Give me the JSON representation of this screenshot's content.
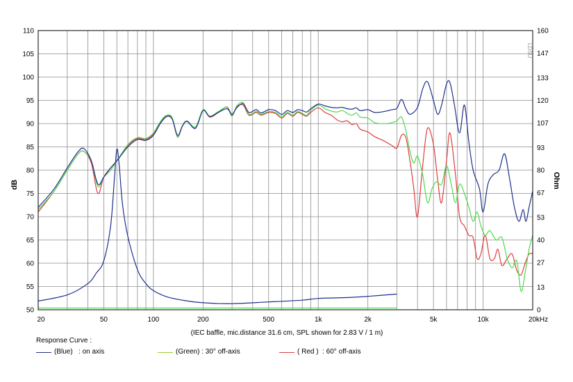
{
  "chart_data": {
    "type": "line",
    "subtitle": "(IEC baffle, mic.distance 31.6 cm, SPL shown for 2.83 V / 1 m)",
    "xlabel": "",
    "ylabel_left": "dB",
    "ylabel_right": "Ohm",
    "x_scale": "log",
    "xlim": [
      20,
      20000
    ],
    "ylim_left": [
      50,
      110
    ],
    "ylim_right": [
      0,
      160
    ],
    "x_ticks": [
      {
        "v": 20,
        "label": "20"
      },
      {
        "v": 50,
        "label": "50"
      },
      {
        "v": 100,
        "label": "100"
      },
      {
        "v": 200,
        "label": "200"
      },
      {
        "v": 500,
        "label": "500"
      },
      {
        "v": 1000,
        "label": "1k"
      },
      {
        "v": 2000,
        "label": "2k"
      },
      {
        "v": 5000,
        "label": "5k"
      },
      {
        "v": 10000,
        "label": "10k"
      },
      {
        "v": 20000,
        "label": "20kHz"
      }
    ],
    "y_ticks_left": [
      "110",
      "105",
      "100",
      "95",
      "90",
      "85",
      "80",
      "75",
      "70",
      "65",
      "60",
      "55",
      "50"
    ],
    "y_ticks_right": [
      {
        "v": 160,
        "label": "160"
      },
      {
        "v": 147,
        "label": "147"
      },
      {
        "v": 133,
        "label": "133"
      },
      {
        "v": 120,
        "label": "120"
      },
      {
        "v": 107,
        "label": "107"
      },
      {
        "v": 93,
        "label": "93"
      },
      {
        "v": 80,
        "label": "80"
      },
      {
        "v": 67,
        "label": "67"
      },
      {
        "v": 53,
        "label": "53"
      },
      {
        "v": 40,
        "label": "40"
      },
      {
        "v": 27,
        "label": "27"
      },
      {
        "v": 13,
        "label": "13"
      },
      {
        "v": 0,
        "label": "0"
      }
    ],
    "watermark": "LDSU",
    "grid": true,
    "legend_title": "Response Curve :",
    "legend_position": "bottom",
    "series": [
      {
        "name": "(Blue)   : on axis",
        "color": "#1c2f8c",
        "axis": "left",
        "points": [
          [
            20,
            72
          ],
          [
            25,
            76
          ],
          [
            30,
            80.5
          ],
          [
            35,
            84
          ],
          [
            38,
            84.6
          ],
          [
            42,
            82
          ],
          [
            46,
            77
          ],
          [
            50,
            78.5
          ],
          [
            55,
            80.5
          ],
          [
            60,
            82
          ],
          [
            70,
            85
          ],
          [
            80,
            86.6
          ],
          [
            90,
            86.4
          ],
          [
            100,
            87.5
          ],
          [
            110,
            90
          ],
          [
            120,
            91.5
          ],
          [
            130,
            91
          ],
          [
            140,
            87.5
          ],
          [
            150,
            89.5
          ],
          [
            160,
            90.5
          ],
          [
            180,
            89
          ],
          [
            200,
            92.8
          ],
          [
            220,
            91.5
          ],
          [
            250,
            92.5
          ],
          [
            280,
            93.2
          ],
          [
            300,
            92
          ],
          [
            320,
            93.4
          ],
          [
            350,
            94.3
          ],
          [
            380,
            92.4
          ],
          [
            420,
            93
          ],
          [
            450,
            92.3
          ],
          [
            500,
            93
          ],
          [
            550,
            92.8
          ],
          [
            600,
            92
          ],
          [
            650,
            92.8
          ],
          [
            700,
            92.4
          ],
          [
            750,
            93
          ],
          [
            800,
            92.8
          ],
          [
            850,
            92.5
          ],
          [
            900,
            93.2
          ],
          [
            1000,
            94.2
          ],
          [
            1100,
            93.8
          ],
          [
            1200,
            93.5
          ],
          [
            1300,
            93.4
          ],
          [
            1400,
            93.5
          ],
          [
            1500,
            93.2
          ],
          [
            1600,
            93.1
          ],
          [
            1700,
            93.4
          ],
          [
            1800,
            92.8
          ],
          [
            2000,
            93
          ],
          [
            2200,
            92.4
          ],
          [
            2500,
            92.6
          ],
          [
            2800,
            93
          ],
          [
            3000,
            93.3
          ],
          [
            3200,
            95.2
          ],
          [
            3400,
            93.2
          ],
          [
            3600,
            92
          ],
          [
            4000,
            93.5
          ],
          [
            4300,
            97.5
          ],
          [
            4600,
            99
          ],
          [
            5000,
            95
          ],
          [
            5300,
            92
          ],
          [
            5600,
            94
          ],
          [
            6000,
            98.5
          ],
          [
            6300,
            98.8
          ],
          [
            6700,
            94
          ],
          [
            7200,
            88
          ],
          [
            7700,
            94
          ],
          [
            8200,
            86
          ],
          [
            8700,
            80
          ],
          [
            9500,
            76
          ],
          [
            10000,
            71
          ],
          [
            10700,
            77
          ],
          [
            11500,
            79
          ],
          [
            12500,
            80
          ],
          [
            13500,
            83.5
          ],
          [
            14500,
            78
          ],
          [
            15500,
            72
          ],
          [
            16500,
            69
          ],
          [
            17500,
            71.5
          ],
          [
            18200,
            69
          ],
          [
            19000,
            72
          ],
          [
            20000,
            75.5
          ]
        ]
      },
      {
        "name": "(Green) : 30° off-axis",
        "color": "#4dd94d",
        "axis": "left",
        "points": [
          [
            20,
            71.5
          ],
          [
            25,
            75.5
          ],
          [
            30,
            80
          ],
          [
            35,
            83.5
          ],
          [
            38,
            84
          ],
          [
            42,
            82
          ],
          [
            46,
            76.5
          ],
          [
            50,
            78.5
          ],
          [
            55,
            80
          ],
          [
            60,
            82
          ],
          [
            70,
            85.5
          ],
          [
            80,
            87
          ],
          [
            90,
            86.8
          ],
          [
            100,
            88
          ],
          [
            110,
            90.4
          ],
          [
            120,
            91.8
          ],
          [
            130,
            91.3
          ],
          [
            140,
            87.2
          ],
          [
            150,
            89.6
          ],
          [
            160,
            90.6
          ],
          [
            180,
            89.3
          ],
          [
            200,
            93
          ],
          [
            220,
            91.6
          ],
          [
            250,
            92.7
          ],
          [
            280,
            93.5
          ],
          [
            300,
            91.6
          ],
          [
            320,
            93.8
          ],
          [
            350,
            94.5
          ],
          [
            380,
            92
          ],
          [
            420,
            92.6
          ],
          [
            450,
            92
          ],
          [
            500,
            92.6
          ],
          [
            550,
            92.4
          ],
          [
            600,
            91.5
          ],
          [
            650,
            92.4
          ],
          [
            700,
            91.8
          ],
          [
            750,
            92.6
          ],
          [
            800,
            92.2
          ],
          [
            850,
            91.8
          ],
          [
            900,
            92.8
          ],
          [
            1000,
            94
          ],
          [
            1100,
            93.2
          ],
          [
            1200,
            92.7
          ],
          [
            1300,
            92.5
          ],
          [
            1400,
            92.8
          ],
          [
            1500,
            92.2
          ],
          [
            1600,
            91.8
          ],
          [
            1700,
            92.3
          ],
          [
            1800,
            91.4
          ],
          [
            2000,
            91.2
          ],
          [
            2200,
            90.2
          ],
          [
            2500,
            90
          ],
          [
            2800,
            90.2
          ],
          [
            3000,
            90.6
          ],
          [
            3200,
            91.4
          ],
          [
            3400,
            88.5
          ],
          [
            3600,
            84
          ],
          [
            3800,
            81.5
          ],
          [
            4000,
            83
          ],
          [
            4300,
            79
          ],
          [
            4600,
            73
          ],
          [
            4900,
            76
          ],
          [
            5200,
            77.5
          ],
          [
            5600,
            77
          ],
          [
            6000,
            81
          ],
          [
            6400,
            77
          ],
          [
            6800,
            73
          ],
          [
            7200,
            77
          ],
          [
            7700,
            75
          ],
          [
            8200,
            72
          ],
          [
            8700,
            69
          ],
          [
            9200,
            71
          ],
          [
            9700,
            68
          ],
          [
            10300,
            66
          ],
          [
            11000,
            67
          ],
          [
            12000,
            65
          ],
          [
            13000,
            65.5
          ],
          [
            14000,
            61
          ],
          [
            15000,
            59
          ],
          [
            16000,
            60.5
          ],
          [
            17000,
            54
          ],
          [
            18000,
            58
          ],
          [
            19000,
            63
          ],
          [
            20000,
            66
          ]
        ]
      },
      {
        "name": "( Red )  : 60° off-axis",
        "color": "#e03c3c",
        "axis": "left",
        "points": [
          [
            20,
            71
          ],
          [
            25,
            75.5
          ],
          [
            30,
            80
          ],
          [
            35,
            83.5
          ],
          [
            38,
            84
          ],
          [
            42,
            81.5
          ],
          [
            46,
            75
          ],
          [
            50,
            78.5
          ],
          [
            55,
            80.5
          ],
          [
            60,
            82
          ],
          [
            70,
            85.3
          ],
          [
            80,
            86.8
          ],
          [
            90,
            86.6
          ],
          [
            100,
            87.8
          ],
          [
            110,
            90.2
          ],
          [
            120,
            91.6
          ],
          [
            130,
            91.1
          ],
          [
            140,
            87.1
          ],
          [
            150,
            89.5
          ],
          [
            160,
            90.5
          ],
          [
            180,
            89.1
          ],
          [
            200,
            92.9
          ],
          [
            220,
            91.4
          ],
          [
            250,
            92.5
          ],
          [
            280,
            93.6
          ],
          [
            300,
            91.8
          ],
          [
            320,
            93.6
          ],
          [
            350,
            94
          ],
          [
            380,
            91.8
          ],
          [
            420,
            92.4
          ],
          [
            450,
            91.8
          ],
          [
            500,
            92.4
          ],
          [
            550,
            92.2
          ],
          [
            600,
            91.2
          ],
          [
            650,
            92.2
          ],
          [
            700,
            91.6
          ],
          [
            750,
            92.4
          ],
          [
            800,
            92
          ],
          [
            850,
            91.6
          ],
          [
            900,
            92.4
          ],
          [
            1000,
            93.4
          ],
          [
            1100,
            92.4
          ],
          [
            1200,
            91.8
          ],
          [
            1300,
            90.8
          ],
          [
            1400,
            90.4
          ],
          [
            1500,
            90.6
          ],
          [
            1600,
            89.8
          ],
          [
            1700,
            90
          ],
          [
            1800,
            88.8
          ],
          [
            2000,
            88.2
          ],
          [
            2200,
            87.2
          ],
          [
            2500,
            86.3
          ],
          [
            2800,
            85.3
          ],
          [
            3000,
            84.8
          ],
          [
            3200,
            87.5
          ],
          [
            3400,
            87
          ],
          [
            3600,
            82
          ],
          [
            3800,
            76
          ],
          [
            4000,
            70
          ],
          [
            4300,
            81
          ],
          [
            4600,
            89
          ],
          [
            5000,
            85.5
          ],
          [
            5300,
            78
          ],
          [
            5600,
            73
          ],
          [
            6000,
            82
          ],
          [
            6300,
            88
          ],
          [
            6800,
            79
          ],
          [
            7200,
            70
          ],
          [
            7700,
            68
          ],
          [
            8200,
            66
          ],
          [
            8700,
            65.5
          ],
          [
            9200,
            61
          ],
          [
            9700,
            62
          ],
          [
            10300,
            66
          ],
          [
            11000,
            61
          ],
          [
            11700,
            61
          ],
          [
            12300,
            63
          ],
          [
            13000,
            59.5
          ],
          [
            14000,
            61
          ],
          [
            15000,
            62
          ],
          [
            16000,
            58.5
          ],
          [
            17000,
            57.5
          ],
          [
            18000,
            60
          ],
          [
            19000,
            62
          ],
          [
            20000,
            62
          ]
        ]
      },
      {
        "name": "impedance",
        "color": "#1c2f8c",
        "axis": "right",
        "points": [
          [
            20,
            5
          ],
          [
            30,
            8.5
          ],
          [
            40,
            15
          ],
          [
            45,
            21
          ],
          [
            50,
            28
          ],
          [
            55,
            48
          ],
          [
            58,
            75
          ],
          [
            60,
            92
          ],
          [
            62,
            83
          ],
          [
            65,
            60
          ],
          [
            70,
            42
          ],
          [
            80,
            23
          ],
          [
            90,
            15
          ],
          [
            100,
            11
          ],
          [
            120,
            7.5
          ],
          [
            150,
            5.5
          ],
          [
            200,
            4
          ],
          [
            300,
            3.5
          ],
          [
            500,
            4.5
          ],
          [
            800,
            5.5
          ],
          [
            1000,
            6.5
          ],
          [
            1500,
            7
          ],
          [
            2000,
            7.7
          ],
          [
            3000,
            9
          ]
        ]
      },
      {
        "name": "impedance-30",
        "color": "#4dd94d",
        "axis": "right",
        "points": [
          [
            20,
            1
          ],
          [
            3000,
            1
          ]
        ]
      }
    ]
  }
}
